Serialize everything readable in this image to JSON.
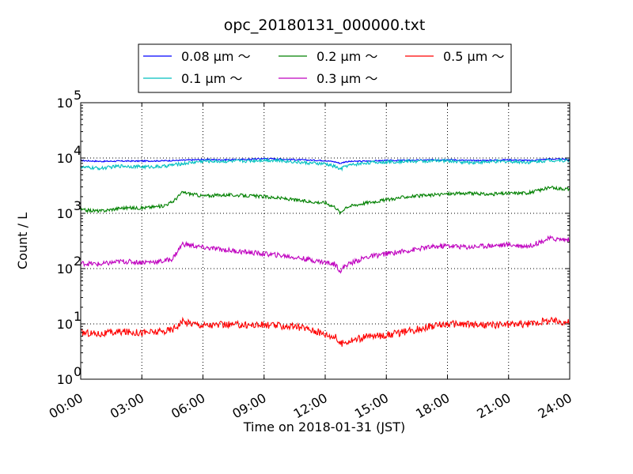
{
  "chart_data": {
    "type": "line",
    "title": "opc_20180131_000000.txt",
    "xlabel": "Time on 2018-01-31 (JST)",
    "ylabel": "Count / L",
    "y_scale": "log",
    "ylim": [
      1,
      100000
    ],
    "xlim": [
      0,
      24
    ],
    "grid": true,
    "legend_position": "top-center",
    "x_ticks": [
      {
        "value": 0,
        "label": "00:00"
      },
      {
        "value": 3,
        "label": "03:00"
      },
      {
        "value": 6,
        "label": "06:00"
      },
      {
        "value": 9,
        "label": "09:00"
      },
      {
        "value": 12,
        "label": "12:00"
      },
      {
        "value": 15,
        "label": "15:00"
      },
      {
        "value": 18,
        "label": "18:00"
      },
      {
        "value": 21,
        "label": "21:00"
      },
      {
        "value": 24,
        "label": "24:00"
      }
    ],
    "y_ticks": [
      {
        "value": 1,
        "base": "10",
        "exp": "0"
      },
      {
        "value": 10,
        "base": "10",
        "exp": "1"
      },
      {
        "value": 100,
        "base": "10",
        "exp": "2"
      },
      {
        "value": 1000,
        "base": "10",
        "exp": "3"
      },
      {
        "value": 10000,
        "base": "10",
        "exp": "4"
      },
      {
        "value": 100000,
        "base": "10",
        "exp": "5"
      }
    ],
    "x": [
      0,
      1,
      2,
      3,
      4,
      4.5,
      5,
      6,
      7,
      8,
      9,
      10,
      11,
      12,
      12.5,
      12.75,
      13,
      14,
      15,
      16,
      17,
      18,
      19,
      20,
      21,
      22,
      23,
      24
    ],
    "series": [
      {
        "name": "0.08 μm ～",
        "color": "#0000ff",
        "values": [
          9000,
          8700,
          8800,
          8800,
          8900,
          9000,
          9100,
          9400,
          9300,
          9400,
          9800,
          9500,
          9200,
          9000,
          8500,
          8000,
          8600,
          8800,
          9000,
          9100,
          9200,
          9400,
          9000,
          9100,
          9300,
          9000,
          9600,
          9400
        ]
      },
      {
        "name": "0.1 μm ～",
        "color": "#00bfbf",
        "values": [
          6800,
          6500,
          7200,
          6900,
          7000,
          7500,
          7900,
          8800,
          8700,
          8800,
          9200,
          8900,
          8200,
          7800,
          7000,
          6200,
          7200,
          8200,
          8500,
          8700,
          8800,
          8900,
          8300,
          8500,
          8700,
          8400,
          9100,
          9000
        ]
      },
      {
        "name": "0.2 μm ～",
        "color": "#008000",
        "values": [
          1150,
          1100,
          1250,
          1250,
          1350,
          1600,
          2400,
          2050,
          2150,
          2100,
          2000,
          1850,
          1650,
          1550,
          1300,
          1000,
          1300,
          1550,
          1750,
          2000,
          2100,
          2250,
          2300,
          2200,
          2300,
          2350,
          2900,
          2750
        ]
      },
      {
        "name": "0.3 μm ～",
        "color": "#bf00bf",
        "values": [
          125,
          120,
          135,
          130,
          135,
          150,
          280,
          240,
          220,
          200,
          185,
          170,
          150,
          130,
          120,
          90,
          115,
          160,
          185,
          210,
          240,
          260,
          245,
          260,
          270,
          255,
          350,
          330
        ]
      },
      {
        "name": "0.5 μm ～",
        "color": "#ff0000",
        "values": [
          7,
          6.6,
          7.2,
          7,
          7.2,
          8,
          11,
          9.5,
          9.6,
          9.6,
          9.5,
          9.2,
          8.5,
          6.5,
          5.8,
          4.3,
          4.8,
          5.8,
          6.3,
          7.2,
          8.8,
          10,
          9.8,
          9.5,
          9.8,
          10,
          11.5,
          10.8
        ]
      }
    ]
  }
}
